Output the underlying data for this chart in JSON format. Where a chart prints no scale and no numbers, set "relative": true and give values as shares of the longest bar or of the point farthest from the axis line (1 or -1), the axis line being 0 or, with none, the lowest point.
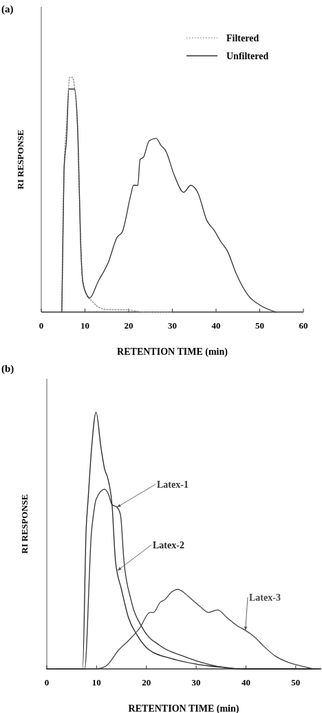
{
  "chart_data": [
    {
      "type": "line",
      "title": "(a)",
      "xlabel": "RETENTION TIME (min)",
      "ylabel": "RI RESPONSE",
      "relative": true,
      "xlim": [
        0,
        60
      ],
      "xticks": [
        0,
        10,
        20,
        30,
        40,
        50,
        60
      ],
      "legend": "top right",
      "series": [
        {
          "name": "Filtered",
          "color": "#9a9a9a",
          "line_style": "dotted",
          "x": [
            4.7,
            5.2,
            5.8,
            6.5,
            7.1,
            7.6,
            8.4,
            9.0,
            9.5,
            10.5,
            11.6,
            13.2,
            15.8,
            18.9,
            24,
            30
          ],
          "values": [
            0,
            0.6,
            0.8,
            1.0,
            1.0,
            0.96,
            0.74,
            0.3,
            0.13,
            0.07,
            0.047,
            0.02,
            0.01,
            0.01,
            0,
            0
          ]
        },
        {
          "name": "Unfiltered",
          "color": "#333333",
          "line_style": "solid",
          "x": [
            4.7,
            5.2,
            5.8,
            6.3,
            7.6,
            8.4,
            9.0,
            9.5,
            10.5,
            11.1,
            13.0,
            15.3,
            17.4,
            18.5,
            20.5,
            21.1,
            22.1,
            22.6,
            23.4,
            24.7,
            26.3,
            27.4,
            28.4,
            30.5,
            32.6,
            34.2,
            35.8,
            37.9,
            39.5,
            41.1,
            42.6,
            44.7,
            47.4,
            50,
            53.7
          ],
          "values": [
            0,
            0.6,
            0.74,
            0.95,
            0.95,
            0.74,
            0.3,
            0.13,
            0.07,
            0.06,
            0.13,
            0.21,
            0.32,
            0.34,
            0.5,
            0.54,
            0.54,
            0.65,
            0.66,
            0.73,
            0.74,
            0.71,
            0.69,
            0.58,
            0.51,
            0.54,
            0.51,
            0.39,
            0.35,
            0.3,
            0.26,
            0.16,
            0.07,
            0.03,
            0
          ]
        }
      ]
    },
    {
      "type": "line",
      "title": "(b)",
      "xlabel": "RETENTION TIME (min)",
      "ylabel": "RI RESPONSE",
      "relative": true,
      "xlim": [
        0,
        55
      ],
      "xticks": [
        0,
        10,
        20,
        30,
        40,
        50
      ],
      "series": [
        {
          "name": "Latex-1",
          "color": "#333333",
          "x": [
            0,
            7.6,
            9.0,
            9.3,
            9.9,
            11.6,
            12.4,
            13.1,
            14.1,
            14.8,
            15.5,
            16.9,
            19.2,
            22.8,
            27.4,
            31.1,
            34.3,
            40,
            55
          ],
          "values": [
            0,
            0,
            0.54,
            0.59,
            0.66,
            0.7,
            0.68,
            0.64,
            0.63,
            0.6,
            0.42,
            0.27,
            0.16,
            0.09,
            0.05,
            0.025,
            0.01,
            0,
            0
          ]
        },
        {
          "name": "Latex-2",
          "color": "#222222",
          "x": [
            0,
            7.2,
            7.9,
            8.3,
            9.0,
            9.9,
            10.9,
            11.6,
            12.3,
            13.1,
            13.8,
            15,
            16.4,
            18.2,
            20.5,
            25.1,
            29.7,
            34.3,
            40,
            55
          ],
          "values": [
            0,
            0,
            0.54,
            0.66,
            0.86,
            1.0,
            0.86,
            0.78,
            0.74,
            0.64,
            0.42,
            0.31,
            0.2,
            0.13,
            0.075,
            0.04,
            0.02,
            0.008,
            0,
            0
          ]
        },
        {
          "name": "Latex-3",
          "color": "#444444",
          "x": [
            0,
            9.9,
            11.8,
            14.5,
            16.4,
            18.7,
            20.7,
            21.4,
            22.8,
            23.7,
            25.1,
            26.3,
            27.4,
            28.3,
            30.7,
            32.5,
            34.3,
            36.2,
            38.5,
            39.9,
            41.7,
            43.5,
            45.9,
            48.6,
            51.4,
            54.1,
            55
          ],
          "values": [
            0,
            0,
            0.01,
            0.075,
            0.11,
            0.16,
            0.22,
            0.22,
            0.26,
            0.27,
            0.3,
            0.31,
            0.3,
            0.285,
            0.245,
            0.22,
            0.23,
            0.2,
            0.165,
            0.15,
            0.125,
            0.09,
            0.05,
            0.025,
            0.01,
            0,
            0
          ]
        }
      ]
    }
  ]
}
